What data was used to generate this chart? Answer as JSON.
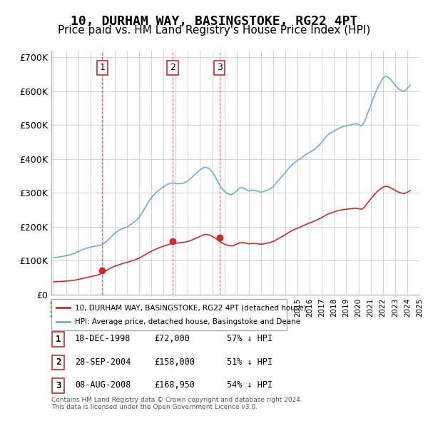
{
  "title": "10, DURHAM WAY, BASINGSTOKE, RG22 4PT",
  "subtitle": "Price paid vs. HM Land Registry's House Price Index (HPI)",
  "title_fontsize": 13,
  "subtitle_fontsize": 11,
  "ylabel": "",
  "xlabel": "",
  "ylim": [
    0,
    720000
  ],
  "yticks": [
    0,
    100000,
    200000,
    300000,
    400000,
    500000,
    600000,
    700000
  ],
  "ytick_labels": [
    "£0",
    "£100K",
    "£200K",
    "£300K",
    "£400K",
    "£500K",
    "£600K",
    "£700K"
  ],
  "hpi_color": "#6baed6",
  "sold_color": "#d62728",
  "background_color": "#ffffff",
  "grid_color": "#cccccc",
  "legend_box_color": "#ffffff",
  "legend_border_color": "#999999",
  "sale_markers": [
    {
      "year": 1998.97,
      "price": 72000,
      "label": "1"
    },
    {
      "year": 2004.74,
      "price": 158000,
      "label": "2"
    },
    {
      "year": 2008.6,
      "price": 168950,
      "label": "3"
    }
  ],
  "vline_years": [
    1998.97,
    2004.74,
    2008.6
  ],
  "table_rows": [
    {
      "num": "1",
      "date": "18-DEC-1998",
      "price": "£72,000",
      "hpi": "57% ↓ HPI"
    },
    {
      "num": "2",
      "date": "28-SEP-2004",
      "price": "£158,000",
      "hpi": "51% ↓ HPI"
    },
    {
      "num": "3",
      "date": "08-AUG-2008",
      "price": "£168,950",
      "hpi": "54% ↓ HPI"
    }
  ],
  "legend_line1": "10, DURHAM WAY, BASINGSTOKE, RG22 4PT (detached house)",
  "legend_line2": "HPI: Average price, detached house, Basingstoke and Deane",
  "footnote": "Contains HM Land Registry data © Crown copyright and database right 2024.\nThis data is licensed under the Open Government Licence v3.0.",
  "hpi_x": [
    1995.0,
    1995.25,
    1995.5,
    1995.75,
    1996.0,
    1996.25,
    1996.5,
    1996.75,
    1997.0,
    1997.25,
    1997.5,
    1997.75,
    1998.0,
    1998.25,
    1998.5,
    1998.75,
    1999.0,
    1999.25,
    1999.5,
    1999.75,
    2000.0,
    2000.25,
    2000.5,
    2000.75,
    2001.0,
    2001.25,
    2001.5,
    2001.75,
    2002.0,
    2002.25,
    2002.5,
    2002.75,
    2003.0,
    2003.25,
    2003.5,
    2003.75,
    2004.0,
    2004.25,
    2004.5,
    2004.75,
    2005.0,
    2005.25,
    2005.5,
    2005.75,
    2006.0,
    2006.25,
    2006.5,
    2006.75,
    2007.0,
    2007.25,
    2007.5,
    2007.75,
    2008.0,
    2008.25,
    2008.5,
    2008.75,
    2009.0,
    2009.25,
    2009.5,
    2009.75,
    2010.0,
    2010.25,
    2010.5,
    2010.75,
    2011.0,
    2011.25,
    2011.5,
    2011.75,
    2012.0,
    2012.25,
    2012.5,
    2012.75,
    2013.0,
    2013.25,
    2013.5,
    2013.75,
    2014.0,
    2014.25,
    2014.5,
    2014.75,
    2015.0,
    2015.25,
    2015.5,
    2015.75,
    2016.0,
    2016.25,
    2016.5,
    2016.75,
    2017.0,
    2017.25,
    2017.5,
    2017.75,
    2018.0,
    2018.25,
    2018.5,
    2018.75,
    2019.0,
    2019.25,
    2019.5,
    2019.75,
    2020.0,
    2020.25,
    2020.5,
    2020.75,
    2021.0,
    2021.25,
    2021.5,
    2021.75,
    2022.0,
    2022.25,
    2022.5,
    2022.75,
    2023.0,
    2023.25,
    2023.5,
    2023.75,
    2024.0,
    2024.25
  ],
  "hpi_y": [
    109000,
    110000,
    112000,
    113000,
    115000,
    117000,
    120000,
    122000,
    127000,
    131000,
    135000,
    138000,
    140000,
    142000,
    144000,
    145000,
    148000,
    155000,
    163000,
    172000,
    181000,
    188000,
    193000,
    196000,
    199000,
    205000,
    212000,
    218000,
    228000,
    242000,
    257000,
    272000,
    285000,
    296000,
    305000,
    312000,
    318000,
    324000,
    328000,
    330000,
    328000,
    327000,
    328000,
    330000,
    336000,
    343000,
    352000,
    360000,
    368000,
    374000,
    376000,
    372000,
    362000,
    348000,
    330000,
    316000,
    305000,
    298000,
    295000,
    298000,
    306000,
    315000,
    316000,
    310000,
    305000,
    308000,
    308000,
    305000,
    302000,
    305000,
    308000,
    312000,
    318000,
    330000,
    340000,
    350000,
    360000,
    372000,
    382000,
    390000,
    396000,
    402000,
    408000,
    415000,
    420000,
    425000,
    432000,
    440000,
    450000,
    462000,
    472000,
    478000,
    482000,
    488000,
    492000,
    496000,
    498000,
    500000,
    502000,
    504000,
    502000,
    498000,
    510000,
    535000,
    558000,
    582000,
    605000,
    622000,
    638000,
    645000,
    640000,
    630000,
    618000,
    608000,
    602000,
    600000,
    608000,
    618000
  ],
  "sold_x": [
    1995.0,
    1995.25,
    1995.5,
    1995.75,
    1996.0,
    1996.25,
    1996.5,
    1996.75,
    1997.0,
    1997.25,
    1997.5,
    1997.75,
    1998.0,
    1998.25,
    1998.5,
    1998.75,
    1999.0,
    1999.25,
    1999.5,
    1999.75,
    2000.0,
    2000.25,
    2000.5,
    2000.75,
    2001.0,
    2001.25,
    2001.5,
    2001.75,
    2002.0,
    2002.25,
    2002.5,
    2002.75,
    2003.0,
    2003.25,
    2003.5,
    2003.75,
    2004.0,
    2004.25,
    2004.5,
    2004.75,
    2005.0,
    2005.25,
    2005.5,
    2005.75,
    2006.0,
    2006.25,
    2006.5,
    2006.75,
    2007.0,
    2007.25,
    2007.5,
    2007.75,
    2008.0,
    2008.25,
    2008.5,
    2008.75,
    2009.0,
    2009.25,
    2009.5,
    2009.75,
    2010.0,
    2010.25,
    2010.5,
    2010.75,
    2011.0,
    2011.25,
    2011.5,
    2011.75,
    2012.0,
    2012.25,
    2012.5,
    2012.75,
    2013.0,
    2013.25,
    2013.5,
    2013.75,
    2014.0,
    2014.25,
    2014.5,
    2014.75,
    2015.0,
    2015.25,
    2015.5,
    2015.75,
    2016.0,
    2016.25,
    2016.5,
    2016.75,
    2017.0,
    2017.25,
    2017.5,
    2017.75,
    2018.0,
    2018.25,
    2018.5,
    2018.75,
    2019.0,
    2019.25,
    2019.5,
    2019.75,
    2020.0,
    2020.25,
    2020.5,
    2020.75,
    2021.0,
    2021.25,
    2021.5,
    2021.75,
    2022.0,
    2022.25,
    2022.5,
    2022.75,
    2023.0,
    2023.25,
    2023.5,
    2023.75,
    2024.0,
    2024.25
  ],
  "sold_y": [
    38000,
    38500,
    39000,
    39500,
    40000,
    41000,
    42000,
    43000,
    45000,
    47000,
    49000,
    51000,
    53000,
    55000,
    57000,
    60000,
    65000,
    70000,
    75000,
    80000,
    84000,
    87000,
    90000,
    93000,
    95000,
    98000,
    101000,
    104000,
    108000,
    113000,
    118000,
    123000,
    128000,
    132000,
    136000,
    140000,
    143000,
    146000,
    149000,
    152000,
    152000,
    153000,
    154000,
    155000,
    157000,
    160000,
    164000,
    168000,
    172000,
    176000,
    178000,
    176000,
    172000,
    167000,
    160000,
    154000,
    149000,
    146000,
    144000,
    145000,
    149000,
    153000,
    154000,
    152000,
    150000,
    151000,
    151000,
    150000,
    149000,
    150000,
    152000,
    154000,
    157000,
    162000,
    167000,
    172000,
    177000,
    183000,
    188000,
    192000,
    196000,
    200000,
    204000,
    208000,
    212000,
    215000,
    219000,
    223000,
    228000,
    233000,
    238000,
    241000,
    244000,
    247000,
    249000,
    251000,
    252000,
    253000,
    254000,
    255000,
    254000,
    252000,
    258000,
    271000,
    282000,
    293000,
    303000,
    310000,
    317000,
    320000,
    318000,
    313000,
    308000,
    303000,
    300000,
    298000,
    302000,
    307000
  ]
}
